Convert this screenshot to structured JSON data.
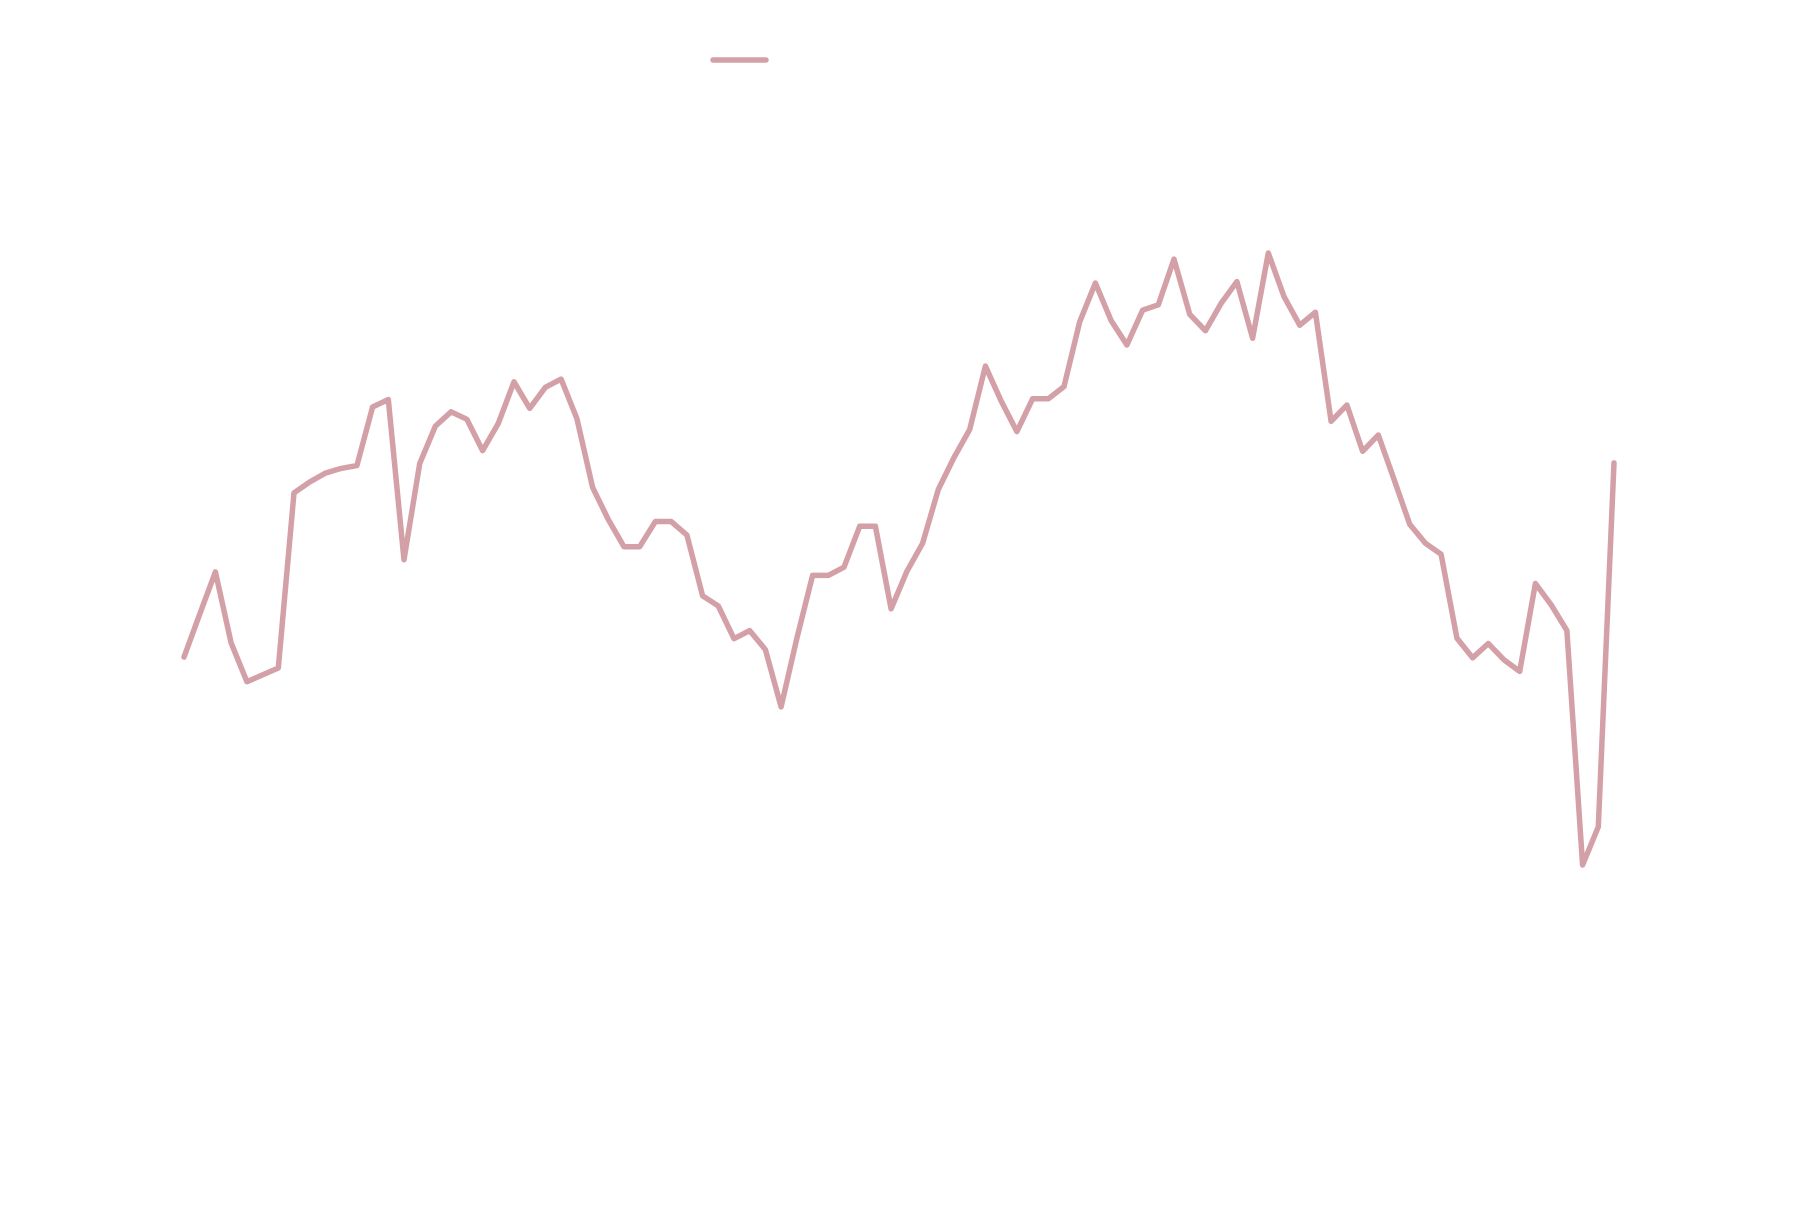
{
  "chart_data": {
    "type": "line",
    "title": "",
    "xlabel": "",
    "ylabel": "",
    "grid": false,
    "axes_visible": false,
    "legend": {
      "position": "top-center",
      "entries": [
        {
          "label": "",
          "color": "#d4a0a7"
        }
      ]
    },
    "xlim": [
      0,
      91
    ],
    "ylim": [
      0,
      1
    ],
    "series": [
      {
        "color": "#d4a0a7",
        "x": [
          0,
          1,
          2,
          3,
          4,
          5,
          6,
          7,
          8,
          9,
          10,
          11,
          12,
          13,
          14,
          15,
          16,
          17,
          18,
          19,
          20,
          21,
          22,
          23,
          24,
          25,
          26,
          27,
          28,
          29,
          30,
          31,
          32,
          33,
          34,
          35,
          36,
          37,
          38,
          39,
          40,
          41,
          42,
          43,
          44,
          45,
          46,
          47,
          48,
          49,
          50,
          51,
          52,
          53,
          54,
          55,
          56,
          57,
          58,
          59,
          60,
          61,
          62,
          63,
          64,
          65,
          66,
          67,
          68,
          69,
          70,
          71,
          72,
          73,
          74,
          75,
          76,
          77,
          78,
          79,
          80,
          81,
          82,
          83,
          84,
          85,
          86,
          87,
          88,
          89,
          90,
          91
        ],
        "values": [
          0.511,
          0.574,
          0.636,
          0.532,
          0.475,
          0.485,
          0.495,
          0.752,
          0.768,
          0.781,
          0.788,
          0.792,
          0.878,
          0.889,
          0.654,
          0.795,
          0.85,
          0.871,
          0.86,
          0.814,
          0.854,
          0.915,
          0.876,
          0.907,
          0.919,
          0.861,
          0.76,
          0.713,
          0.673,
          0.673,
          0.71,
          0.71,
          0.69,
          0.601,
          0.586,
          0.538,
          0.55,
          0.522,
          0.438,
          0.539,
          0.631,
          0.631,
          0.643,
          0.703,
          0.703,
          0.582,
          0.637,
          0.678,
          0.757,
          0.804,
          0.845,
          0.938,
          0.887,
          0.842,
          0.89,
          0.89,
          0.908,
          1.003,
          1.06,
          1.005,
          0.969,
          1.02,
          1.028,
          1.095,
          1.014,
          0.99,
          1.03,
          1.062,
          0.979,
          1.104,
          1.04,
          0.998,
          1.017,
          0.857,
          0.881,
          0.813,
          0.837,
          0.772,
          0.706,
          0.678,
          0.662,
          0.539,
          0.51,
          0.531,
          0.507,
          0.49,
          0.619,
          0.588,
          0.55,
          0.206,
          0.262,
          0.796
        ]
      }
    ]
  }
}
